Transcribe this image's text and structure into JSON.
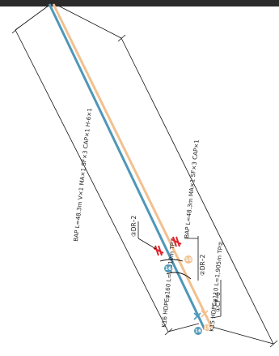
{
  "drawing": {
    "colors": {
      "header_bar": "#2b2b2b",
      "pipe_k16": "#4f97b8",
      "pipe_k15": "#f2c08f",
      "cross_mark": "#e0242c",
      "outline": "#111111"
    },
    "labels": {
      "k16_spec": "K16 HDPEφ160 L=1,910m TP②",
      "k16_components": "BAP L=48.3m V×1 MA×1 SF×3 CAP×1 H-6×1",
      "k15_spec": "K15 HDPEφ110 L=1,905m TP②",
      "k15_components": "BAP L=48.3m MA×1 SF×3 CAP×1"
    },
    "tags": {
      "dr2_k16": "③DR–2",
      "dr2_k15": "②DR–2",
      "cf6": "①CF–6"
    },
    "badges": {
      "k16_upper": "16",
      "k15_upper": "15",
      "k16_lower": "16",
      "k15_lower": "15"
    }
  }
}
